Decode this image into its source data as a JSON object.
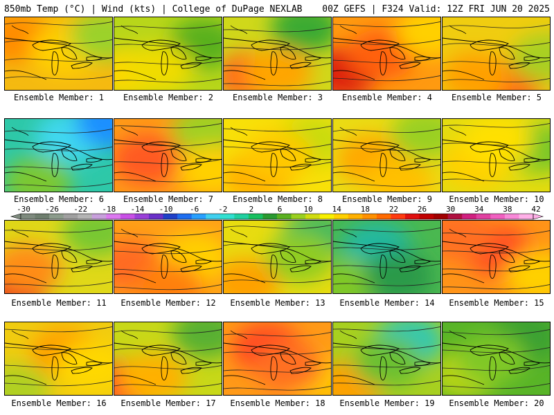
{
  "header": {
    "left": "850mb Temp (°C) | Wind (kts) | College of DuPage NEXLAB",
    "right": "00Z GEFS | F324 Valid: 12Z FRI JUN 20 2025"
  },
  "caption_prefix": "Ensemble Member:",
  "members": [
    {
      "n": 1,
      "base": "#f5ba10",
      "blobs": [
        [
          "#ff8c00",
          0.12,
          0.28
        ],
        [
          "#ffd000",
          0.55,
          0.45
        ],
        [
          "#9bd22a",
          0.92,
          0.25
        ]
      ]
    },
    {
      "n": 2,
      "base": "#b8d61a",
      "blobs": [
        [
          "#ffd700",
          0.15,
          0.75
        ],
        [
          "#59b01c",
          0.82,
          0.35
        ],
        [
          "#f0dc00",
          0.4,
          0.7
        ]
      ]
    },
    {
      "n": 3,
      "base": "#d0d81a",
      "blobs": [
        [
          "#3aaa30",
          0.75,
          0.15
        ],
        [
          "#ff6a1a",
          0.25,
          0.8
        ],
        [
          "#ffa500",
          0.5,
          0.75
        ]
      ]
    },
    {
      "n": 4,
      "base": "#ff9a10",
      "blobs": [
        [
          "#dd2010",
          0.1,
          0.75
        ],
        [
          "#ff6010",
          0.45,
          0.5
        ],
        [
          "#ffd000",
          0.9,
          0.2
        ]
      ]
    },
    {
      "n": 5,
      "base": "#f0cd10",
      "blobs": [
        [
          "#ff6818",
          0.6,
          0.9
        ],
        [
          "#a8d020",
          0.95,
          0.55
        ],
        [
          "#ffa000",
          0.3,
          0.8
        ]
      ]
    },
    {
      "n": 6,
      "base": "#2ec8a8",
      "blobs": [
        [
          "#40d8f0",
          0.6,
          0.25
        ],
        [
          "#7cc830",
          0.3,
          0.85
        ],
        [
          "#1e90ff",
          0.97,
          0.05
        ]
      ]
    },
    {
      "n": 7,
      "base": "#ff9a18",
      "blobs": [
        [
          "#ff5a20",
          0.3,
          0.55
        ],
        [
          "#a0d020",
          0.85,
          0.15
        ],
        [
          "#ffd000",
          0.9,
          0.7
        ]
      ]
    },
    {
      "n": 8,
      "base": "#f8e008",
      "blobs": [
        [
          "#ffb000",
          0.3,
          0.8
        ],
        [
          "#c8dc10",
          0.8,
          0.3
        ],
        [
          "#ffc800",
          0.5,
          0.5
        ]
      ]
    },
    {
      "n": 9,
      "base": "#eadc14",
      "blobs": [
        [
          "#ffa800",
          0.35,
          0.55
        ],
        [
          "#9ad020",
          0.85,
          0.2
        ],
        [
          "#ffc000",
          0.6,
          0.85
        ]
      ]
    },
    {
      "n": 10,
      "base": "#e4dc10",
      "blobs": [
        [
          "#ffd000",
          0.3,
          0.6
        ],
        [
          "#7cc828",
          0.9,
          0.4
        ],
        [
          "#ffe000",
          0.5,
          0.3
        ]
      ]
    },
    {
      "n": 11,
      "base": "#e0d818",
      "blobs": [
        [
          "#e03020",
          0.05,
          0.95
        ],
        [
          "#ff8c18",
          0.2,
          0.65
        ],
        [
          "#78c830",
          0.85,
          0.15
        ]
      ]
    },
    {
      "n": 12,
      "base": "#ffa018",
      "blobs": [
        [
          "#ff6a20",
          0.15,
          0.6
        ],
        [
          "#ffd000",
          0.75,
          0.5
        ],
        [
          "#ff8010",
          0.5,
          0.9
        ]
      ]
    },
    {
      "n": 13,
      "base": "#e8dc10",
      "blobs": [
        [
          "#3ab860",
          0.85,
          0.2
        ],
        [
          "#ffa000",
          0.2,
          0.85
        ],
        [
          "#90cc20",
          0.7,
          0.5
        ]
      ]
    },
    {
      "n": 14,
      "base": "#4ab850",
      "blobs": [
        [
          "#20b8a0",
          0.4,
          0.35
        ],
        [
          "#80c828",
          0.1,
          0.85
        ],
        [
          "#2a9a48",
          0.6,
          0.75
        ]
      ]
    },
    {
      "n": 15,
      "base": "#ff9418",
      "blobs": [
        [
          "#ff5020",
          0.5,
          0.4
        ],
        [
          "#ffd000",
          0.9,
          0.75
        ],
        [
          "#ff7020",
          0.15,
          0.2
        ]
      ]
    },
    {
      "n": 16,
      "base": "#f0cc10",
      "blobs": [
        [
          "#ffa000",
          0.55,
          0.4
        ],
        [
          "#b0d020",
          0.1,
          0.9
        ],
        [
          "#ffd800",
          0.8,
          0.6
        ]
      ]
    },
    {
      "n": 17,
      "base": "#c8d818",
      "blobs": [
        [
          "#ff5020",
          0.1,
          0.85
        ],
        [
          "#58b030",
          0.85,
          0.15
        ],
        [
          "#ffb000",
          0.35,
          0.75
        ]
      ]
    },
    {
      "n": 18,
      "base": "#ff9a18",
      "blobs": [
        [
          "#ff4a20",
          0.4,
          0.35
        ],
        [
          "#ffc800",
          0.85,
          0.75
        ],
        [
          "#ff7020",
          0.6,
          0.6
        ]
      ]
    },
    {
      "n": 19,
      "base": "#a8d020",
      "blobs": [
        [
          "#30c8b0",
          0.7,
          0.25
        ],
        [
          "#ffa000",
          0.15,
          0.85
        ],
        [
          "#6cc030",
          0.5,
          0.55
        ]
      ]
    },
    {
      "n": 20,
      "base": "#58b428",
      "blobs": [
        [
          "#b8d418",
          0.2,
          0.7
        ],
        [
          "#3aa030",
          0.75,
          0.2
        ],
        [
          "#80c828",
          0.45,
          0.5
        ]
      ]
    }
  ],
  "colorbar": {
    "ticks": [
      "-30",
      "-26",
      "-22",
      "-18",
      "-14",
      "-10",
      "-6",
      "-2",
      "2",
      "6",
      "10",
      "14",
      "18",
      "22",
      "26",
      "30",
      "34",
      "38",
      "42"
    ],
    "colors": [
      "#7e8a7e",
      "#6e7e6e",
      "#8c9c8c",
      "#a0a0a0",
      "#b4b4b4",
      "#c8a0dc",
      "#dc78f0",
      "#c850e6",
      "#9a40d8",
      "#6a30c8",
      "#2040c8",
      "#1e6ef0",
      "#28a0ff",
      "#40d0f0",
      "#30e0d0",
      "#20d0a0",
      "#18c060",
      "#2a9a30",
      "#5ab020",
      "#9ad020",
      "#d0dc10",
      "#f8f000",
      "#ffd000",
      "#ffb000",
      "#ff9000",
      "#ff6a00",
      "#ff3a10",
      "#e01010",
      "#c00000",
      "#a00000",
      "#b01040",
      "#d02080",
      "#e040a0",
      "#f060c0",
      "#f888d8",
      "#ffb0e8"
    ]
  }
}
